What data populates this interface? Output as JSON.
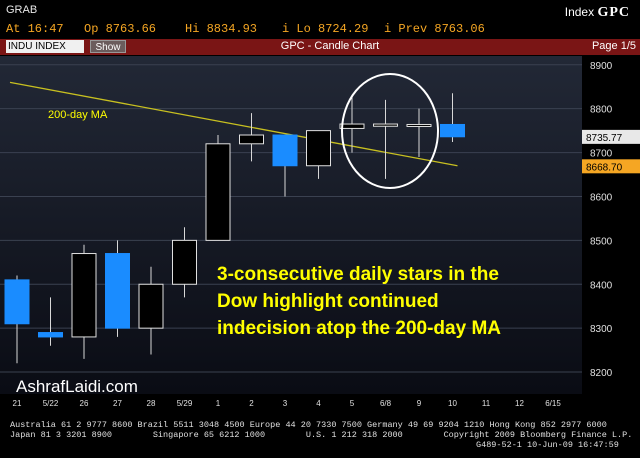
{
  "header": {
    "grab": "GRAB",
    "index_label": "Index",
    "ticker": "GPC",
    "time": "At 16:47",
    "open": "Op 8763.66",
    "high": "Hi 8834.93",
    "low": "i Lo 8724.29",
    "prev": "i Prev 8763.06"
  },
  "tabbar": {
    "security": "INDU INDEX",
    "show": "Show",
    "title": "GPC - Candle Chart",
    "page": "Page 1/5"
  },
  "chart_data": {
    "type": "candlestick",
    "ylim": [
      8150,
      8920
    ],
    "y_ticks": [
      8200,
      8300,
      8400,
      8500,
      8600,
      8700,
      8800,
      8900
    ],
    "x_tick_labels": [
      "21",
      "5/22",
      "26",
      "27",
      "28",
      "5/29",
      "1",
      "2",
      "3",
      "4",
      "5",
      "6/8",
      "9",
      "10",
      "11",
      "12",
      "6/15"
    ],
    "candles": [
      {
        "label": "21",
        "open": 8410,
        "close": 8310,
        "high": 8420,
        "low": 8220
      },
      {
        "label": "5/22",
        "open": 8290,
        "close": 8280,
        "high": 8370,
        "low": 8260
      },
      {
        "label": "26",
        "open": 8280,
        "close": 8470,
        "high": 8490,
        "low": 8230
      },
      {
        "label": "27",
        "open": 8470,
        "close": 8300,
        "high": 8500,
        "low": 8280
      },
      {
        "label": "28",
        "open": 8300,
        "close": 8400,
        "high": 8440,
        "low": 8240
      },
      {
        "label": "5/29",
        "open": 8400,
        "close": 8500,
        "high": 8530,
        "low": 8370
      },
      {
        "label": "1",
        "open": 8500,
        "close": 8720,
        "high": 8740,
        "low": 8500
      },
      {
        "label": "2",
        "open": 8720,
        "close": 8740,
        "high": 8790,
        "low": 8680
      },
      {
        "label": "3",
        "open": 8740,
        "close": 8670,
        "high": 8740,
        "low": 8600
      },
      {
        "label": "4",
        "open": 8670,
        "close": 8750,
        "high": 8750,
        "low": 8640
      },
      {
        "label": "5",
        "open": 8755,
        "close": 8765,
        "high": 8830,
        "low": 8700
      },
      {
        "label": "6/8",
        "open": 8760,
        "close": 8765,
        "high": 8820,
        "low": 8640
      },
      {
        "label": "9",
        "open": 8762,
        "close": 8764,
        "high": 8800,
        "low": 8690
      },
      {
        "label": "10",
        "open": 8764,
        "close": 8736,
        "high": 8835,
        "low": 8724
      }
    ],
    "moving_average": {
      "start": 8860,
      "end": 8670
    },
    "price_flags": [
      {
        "value": 8735.77,
        "label": "8735.77"
      },
      {
        "value": 8668.7,
        "label": "8668.70"
      }
    ],
    "ma_label": "200-day MA",
    "annotation": [
      "3-consecutive daily stars in the",
      "Dow highlight continued",
      "indecision atop the 200-day MA"
    ],
    "watermark": "AshrafLaidi.com"
  },
  "footer": {
    "line1": "Australia 61 2 9777 8600 Brazil 5511 3048 4500 Europe 44 20 7330 7500 Germany 49 69 9204 1210 Hong Kong 852 2977 6000",
    "line2": "Japan 81 3 3201 8900        Singapore 65 6212 1000        U.S. 1 212 318 2000        Copyright 2009 Bloomberg Finance L.P.",
    "line3": "G489-52-1 10-Jun-09 16:47:59"
  },
  "colors": {
    "up_fill": "#000000",
    "up_stroke": "#e0e0e0",
    "down_fill": "#1a8cff",
    "ma_line": "#c8c020",
    "annotation": "#ffff00",
    "flag_blue": "#e8e8e8",
    "flag_orange": "#f5a623",
    "tabbar": "#7a1515"
  }
}
